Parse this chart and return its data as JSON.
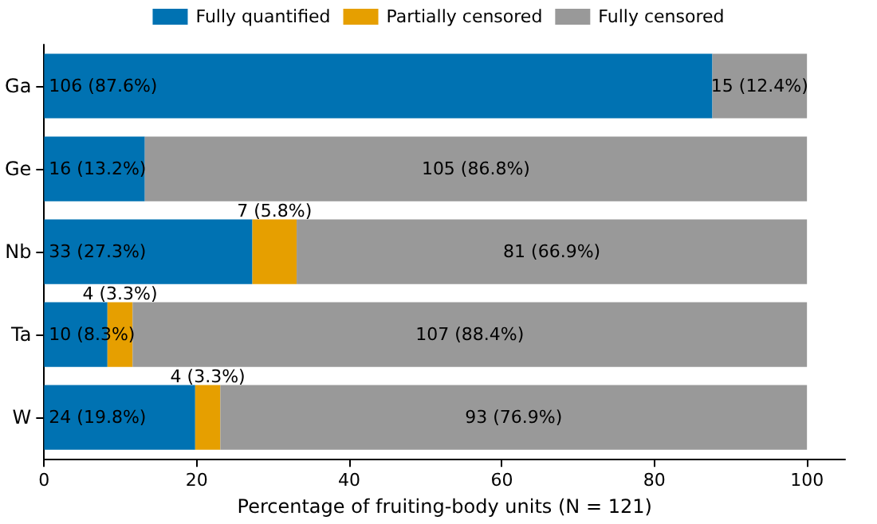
{
  "chart_data": {
    "type": "bar",
    "orientation": "horizontal",
    "stacked": true,
    "xlabel": "Percentage of fruiting-body units (N = 121)",
    "categories": [
      "Ga",
      "Ge",
      "Nb",
      "Ta",
      "W"
    ],
    "series": [
      {
        "name": "Fully quantified",
        "color": "#0072b2",
        "values": [
          87.6,
          13.2,
          27.3,
          8.3,
          19.8
        ],
        "value_labels": [
          "106 (87.6%)",
          "16 (13.2%)",
          "33 (27.3%)",
          "10 (8.3%)",
          "24 (19.8%)"
        ]
      },
      {
        "name": "Partially censored",
        "color": "#e69f00",
        "values": [
          0,
          0,
          5.8,
          3.3,
          3.3
        ],
        "value_labels": [
          null,
          null,
          "7 (5.8%)",
          "4 (3.3%)",
          "4 (3.3%)"
        ]
      },
      {
        "name": "Fully censored",
        "color": "#999999",
        "values": [
          12.4,
          86.8,
          66.9,
          88.4,
          76.9
        ],
        "value_labels": [
          "15 (12.4%)",
          "105 (86.8%)",
          "81 (66.9%)",
          "107 (88.4%)",
          "93 (76.9%)"
        ]
      }
    ],
    "xlim": [
      0,
      105
    ],
    "xticks": [
      0,
      20,
      40,
      60,
      80,
      100
    ],
    "grid": false,
    "legend": "top"
  }
}
